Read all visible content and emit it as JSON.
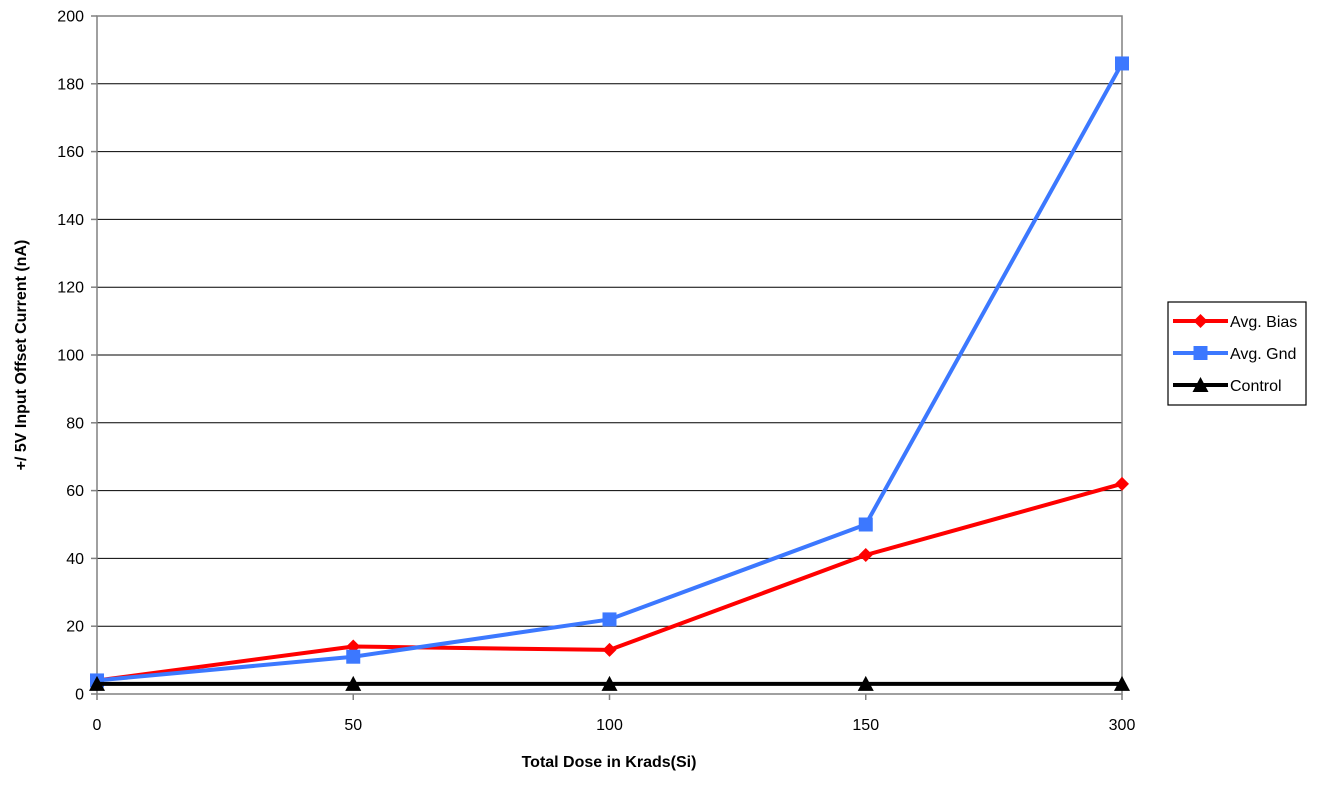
{
  "chart_data": {
    "type": "line",
    "title": "",
    "xlabel": "Total Dose in Krads(Si)",
    "ylabel": "+/ 5V Input Offset Current (nA)",
    "categories": [
      "0",
      "50",
      "100",
      "150",
      "300"
    ],
    "ylim": [
      0,
      200
    ],
    "yticks": [
      "0",
      "20",
      "40",
      "60",
      "80",
      "100",
      "120",
      "140",
      "160",
      "180",
      "200"
    ],
    "grid": "horizontal",
    "legend_position": "right",
    "series": [
      {
        "name": "Avg. Bias",
        "color": "#ff0000",
        "marker": "diamond",
        "values": [
          4,
          14,
          13,
          41,
          62
        ]
      },
      {
        "name": "Avg. Gnd",
        "color": "#3c78ff",
        "marker": "square",
        "values": [
          4,
          11,
          22,
          50,
          186
        ]
      },
      {
        "name": "Control",
        "color": "#000000",
        "marker": "triangle",
        "values": [
          3,
          3,
          3,
          3,
          3
        ]
      }
    ]
  }
}
